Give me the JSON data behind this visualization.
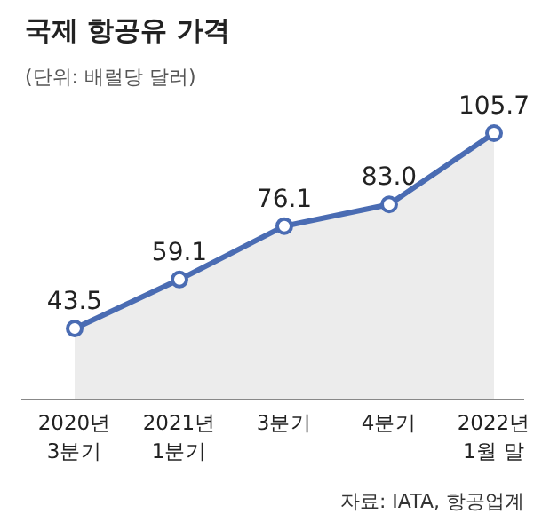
{
  "chart_data": {
    "type": "area",
    "title": "국제 항공유 가격",
    "subtitle": "(단위: 배럴당 달러)",
    "categories": [
      "2020년\n3분기",
      "2021년\n1분기",
      "3분기",
      "4분기",
      "2022년\n1월 말"
    ],
    "series": [
      {
        "color": "#4a6cb3",
        "values": [
          43.5,
          59.1,
          76.1,
          83.0,
          105.7
        ],
        "value_labels": [
          "43.5",
          "59.1",
          "76.1",
          "83.0",
          "105.7"
        ]
      }
    ],
    "marker": "circle",
    "annotations": [
      "자료: IATA, 항공업계"
    ]
  }
}
